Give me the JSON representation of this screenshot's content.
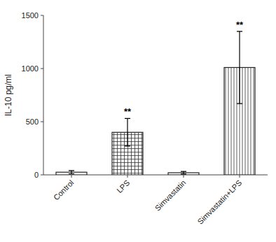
{
  "chart_data": {
    "type": "bar",
    "categories": [
      "Control",
      "LPS",
      "Simvastatin",
      "Simvastatin+LPS"
    ],
    "values": [
      25,
      400,
      20,
      1010
    ],
    "errors": [
      15,
      130,
      12,
      340
    ],
    "ylabel": "IL-10 pg/ml",
    "ylim": [
      0,
      1500
    ],
    "yticks": [
      0,
      500,
      1000,
      1500
    ],
    "colors": [
      "white",
      "white",
      "white",
      "white"
    ],
    "grid": false,
    "annotations": [
      {
        "x": "LPS",
        "text": "**"
      },
      {
        "x": "Simvastatin+LPS",
        "text": "**"
      }
    ]
  }
}
